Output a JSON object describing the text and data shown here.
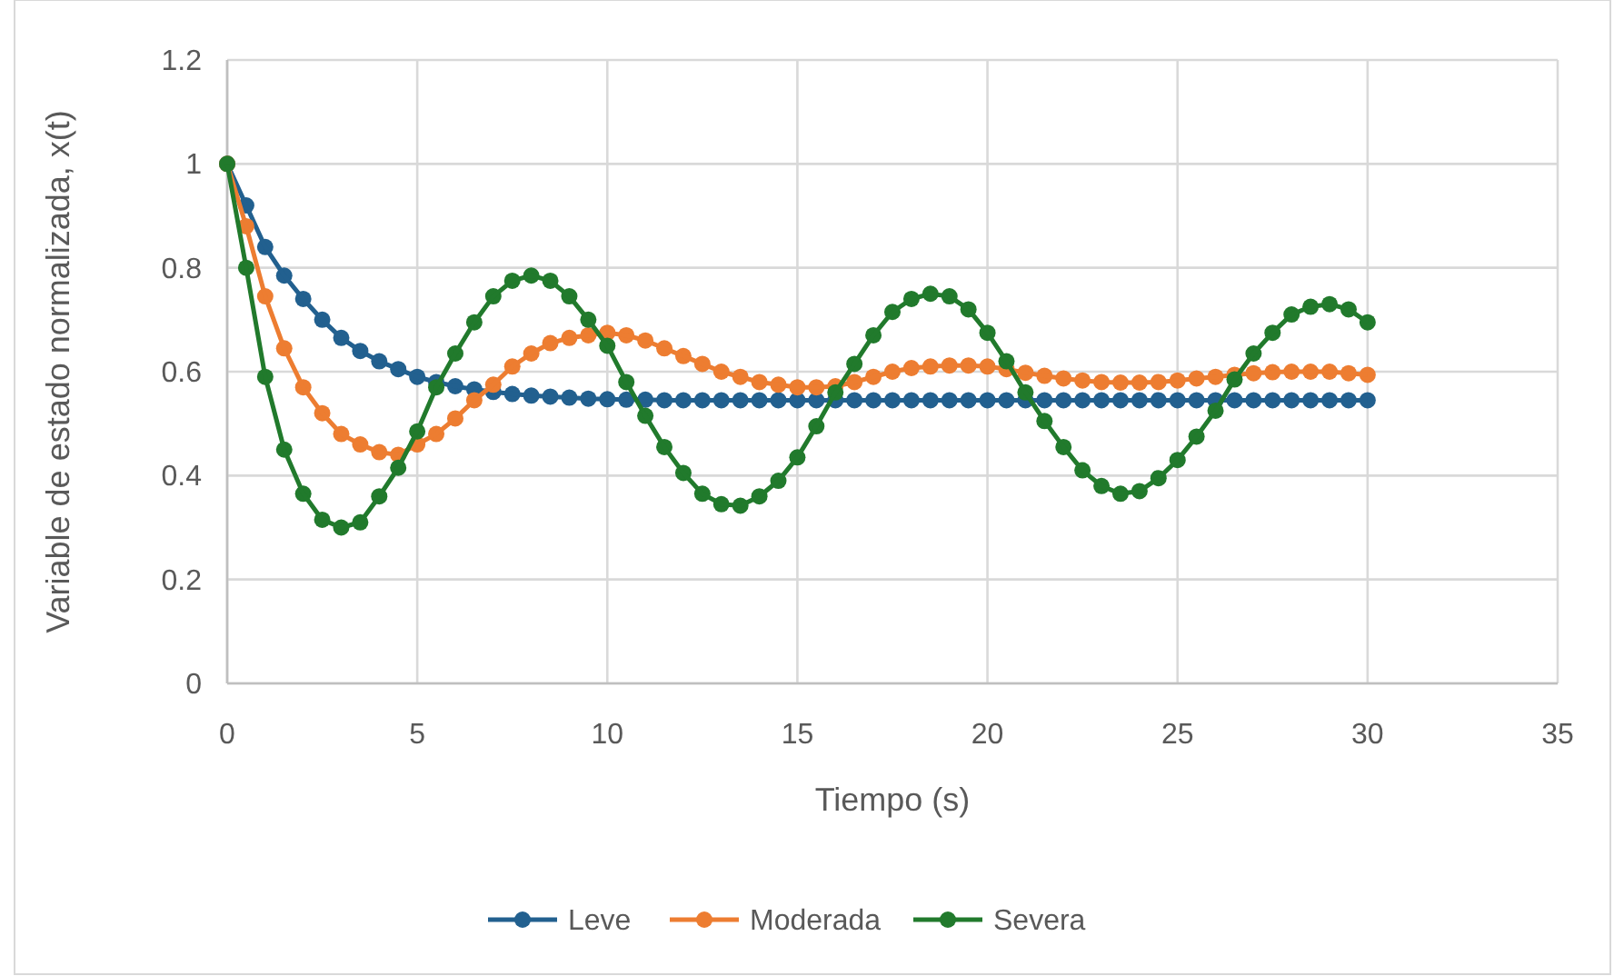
{
  "chart_data": {
    "type": "line",
    "xlabel": "Tiempo (s)",
    "ylabel": "Variable de estado normalizada, x(t)",
    "x": [
      0,
      0.5,
      1,
      1.5,
      2,
      2.5,
      3,
      3.5,
      4,
      4.5,
      5,
      5.5,
      6,
      6.5,
      7,
      7.5,
      8,
      8.5,
      9,
      9.5,
      10,
      10.5,
      11,
      11.5,
      12,
      12.5,
      13,
      13.5,
      14,
      14.5,
      15,
      15.5,
      16,
      16.5,
      17,
      17.5,
      18,
      18.5,
      19,
      19.5,
      20,
      20.5,
      21,
      21.5,
      22,
      22.5,
      23,
      23.5,
      24,
      24.5,
      25,
      25.5,
      26,
      26.5,
      27,
      27.5,
      28,
      28.5,
      29,
      29.5,
      30
    ],
    "series": [
      {
        "name": "Leve",
        "color": "#22608f",
        "values": [
          1,
          0.92,
          0.84,
          0.785,
          0.74,
          0.7,
          0.665,
          0.64,
          0.62,
          0.605,
          0.59,
          0.58,
          0.572,
          0.566,
          0.561,
          0.557,
          0.554,
          0.552,
          0.55,
          0.548,
          0.547,
          0.546,
          0.546,
          0.545,
          0.545,
          0.545,
          0.545,
          0.545,
          0.545,
          0.545,
          0.545,
          0.545,
          0.545,
          0.545,
          0.545,
          0.545,
          0.545,
          0.545,
          0.545,
          0.545,
          0.545,
          0.545,
          0.545,
          0.545,
          0.545,
          0.545,
          0.545,
          0.545,
          0.545,
          0.545,
          0.545,
          0.545,
          0.545,
          0.545,
          0.545,
          0.545,
          0.545,
          0.545,
          0.545,
          0.545,
          0.545
        ]
      },
      {
        "name": "Moderada",
        "color": "#ed7d31",
        "values": [
          1,
          0.88,
          0.745,
          0.645,
          0.57,
          0.52,
          0.48,
          0.46,
          0.445,
          0.44,
          0.46,
          0.48,
          0.51,
          0.545,
          0.575,
          0.61,
          0.635,
          0.655,
          0.665,
          0.67,
          0.675,
          0.67,
          0.66,
          0.645,
          0.63,
          0.615,
          0.6,
          0.59,
          0.58,
          0.575,
          0.57,
          0.57,
          0.572,
          0.58,
          0.59,
          0.6,
          0.607,
          0.61,
          0.612,
          0.612,
          0.61,
          0.605,
          0.598,
          0.592,
          0.587,
          0.583,
          0.58,
          0.579,
          0.579,
          0.58,
          0.583,
          0.587,
          0.59,
          0.594,
          0.597,
          0.599,
          0.6,
          0.6,
          0.6,
          0.597,
          0.594
        ]
      },
      {
        "name": "Severa",
        "color": "#217a2c",
        "values": [
          1,
          0.8,
          0.59,
          0.45,
          0.365,
          0.315,
          0.3,
          0.31,
          0.36,
          0.415,
          0.485,
          0.57,
          0.635,
          0.695,
          0.745,
          0.775,
          0.785,
          0.775,
          0.745,
          0.7,
          0.65,
          0.58,
          0.515,
          0.455,
          0.405,
          0.365,
          0.345,
          0.342,
          0.36,
          0.39,
          0.435,
          0.495,
          0.56,
          0.615,
          0.67,
          0.715,
          0.74,
          0.75,
          0.745,
          0.72,
          0.675,
          0.62,
          0.56,
          0.505,
          0.455,
          0.41,
          0.38,
          0.365,
          0.37,
          0.395,
          0.43,
          0.475,
          0.525,
          0.585,
          0.635,
          0.675,
          0.71,
          0.725,
          0.73,
          0.72,
          0.695
        ]
      }
    ],
    "xlim": [
      0,
      35
    ],
    "xticks": [
      0,
      5,
      10,
      15,
      20,
      25,
      30,
      35
    ],
    "ylim": [
      0,
      1.2
    ],
    "yticks": [
      0,
      0.2,
      0.4,
      0.6,
      0.8,
      1,
      1.2
    ],
    "grid": true,
    "legend": "bottom",
    "marker": "circle",
    "line_style": "solid"
  }
}
